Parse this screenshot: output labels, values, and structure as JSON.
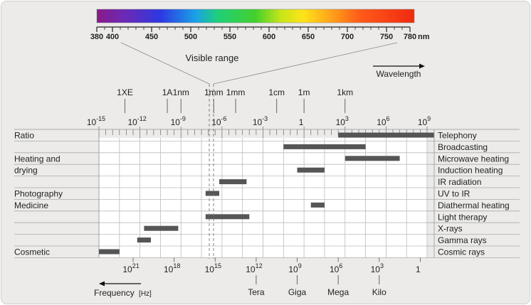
{
  "spectrum_scale": {
    "ticks": [
      {
        "label": "380",
        "value": 380
      },
      {
        "label": "400",
        "value": 400
      },
      {
        "label": "450",
        "value": 450
      },
      {
        "label": "500",
        "value": 500
      },
      {
        "label": "550",
        "value": 550
      },
      {
        "label": "600",
        "value": 600
      },
      {
        "label": "650",
        "value": 650
      },
      {
        "label": "700",
        "value": 700
      },
      {
        "label": "750",
        "value": 750
      },
      {
        "label": "780",
        "value": 780
      }
    ],
    "unit": "nm"
  },
  "visible_range_label": "Visible range",
  "wavelength_label": "Wavelength",
  "frequency_label": "Frequency",
  "frequency_unit": "[Hz]",
  "wavelength_units": [
    {
      "label": "1XE",
      "exp": -13.1
    },
    {
      "label": "1A",
      "exp": -10
    },
    {
      "label": "1nm",
      "exp": -9
    },
    {
      "label": "1mm",
      "exp": -6.6
    },
    {
      "label": "1mm",
      "exp": -5
    },
    {
      "label": "1cm",
      "exp": -2
    },
    {
      "label": "1m",
      "exp": 0
    },
    {
      "label": "1km",
      "exp": 3
    }
  ],
  "wavelength_powers": [
    {
      "base": "10",
      "sup": "-15",
      "exp": -15
    },
    {
      "base": "10",
      "sup": "-12",
      "exp": -12
    },
    {
      "base": "10",
      "sup": "-9",
      "exp": -9
    },
    {
      "base": "10",
      "sup": "-6",
      "exp": -6
    },
    {
      "base": "10",
      "sup": "-3",
      "exp": -3
    },
    {
      "base": "1",
      "sup": "",
      "exp": 0
    },
    {
      "base": "10",
      "sup": "3",
      "exp": 3
    },
    {
      "base": "10",
      "sup": "6",
      "exp": 6
    },
    {
      "base": "10",
      "sup": "9",
      "exp": 9
    }
  ],
  "frequency_powers": [
    {
      "base": "10",
      "sup": "21",
      "exp": -12.5
    },
    {
      "base": "10",
      "sup": "18",
      "exp": -9.5
    },
    {
      "base": "10",
      "sup": "15",
      "exp": -6.5
    },
    {
      "base": "10",
      "sup": "12",
      "exp": -3.5
    },
    {
      "base": "10",
      "sup": "9",
      "exp": -0.5
    },
    {
      "base": "10",
      "sup": "6",
      "exp": 2.5
    },
    {
      "base": "10",
      "sup": "3",
      "exp": 5.5
    },
    {
      "base": "1",
      "sup": "",
      "exp": 8.5
    }
  ],
  "frequency_names": [
    {
      "label": "Tera",
      "exp": -3.5
    },
    {
      "label": "Giga",
      "exp": -0.5
    },
    {
      "label": "Mega",
      "exp": 2.5
    },
    {
      "label": "Kilo",
      "exp": 5.5
    }
  ],
  "categories": [
    {
      "label": "Ratio",
      "row": 0
    },
    {
      "label": "Heating and",
      "row": 2
    },
    {
      "label": "drying",
      "row": 3
    },
    {
      "label": "Photography",
      "row": 5
    },
    {
      "label": "Medicine",
      "row": 6
    },
    {
      "label": "Cosmetic",
      "row": 10
    }
  ],
  "applications": [
    {
      "label": "Telephony",
      "from": 2.5,
      "to": 9.5
    },
    {
      "label": "Broadcasting",
      "from": -1.5,
      "to": 4.5
    },
    {
      "label": "Microwave heating",
      "from": 3,
      "to": 7
    },
    {
      "label": "Induction heating",
      "from": -0.5,
      "to": 1.5
    },
    {
      "label": "IR radiation",
      "from": -6.2,
      "to": -4.2
    },
    {
      "label": "UV to IR",
      "from": -7.2,
      "to": -6.2
    },
    {
      "label": "Diathermal heating",
      "from": 0.5,
      "to": 1.5
    },
    {
      "label": "Light therapy",
      "from": -7.2,
      "to": -4
    },
    {
      "label": "X-rays",
      "from": -11.7,
      "to": -9.2
    },
    {
      "label": "Gamma rays",
      "from": -12.2,
      "to": -11.2
    },
    {
      "label": "Cosmic rays",
      "from": -15,
      "to": -13.5
    }
  ],
  "colors": {
    "bar": "#555555",
    "grid": "#bbbbbb",
    "panel": "#ecebea"
  }
}
